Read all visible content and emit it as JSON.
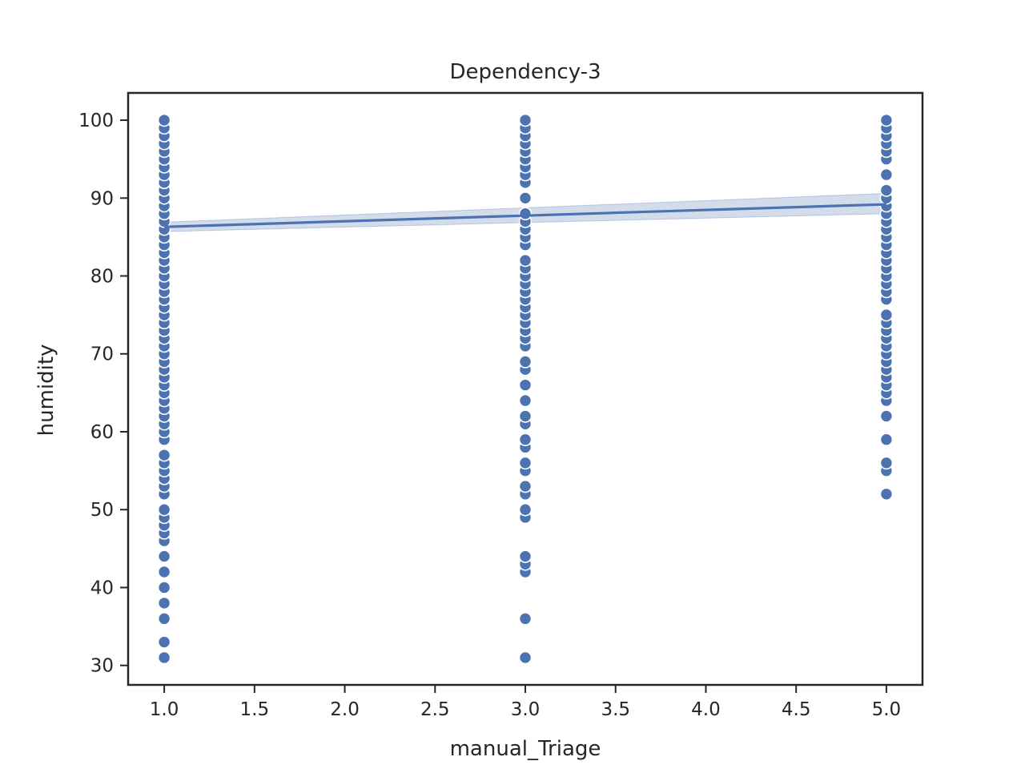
{
  "chart_data": {
    "type": "scatter",
    "title": "Dependency-3",
    "xlabel": "manual_Triage",
    "ylabel": "humidity",
    "xlim": [
      0.8,
      5.2
    ],
    "ylim": [
      27.5,
      103.5
    ],
    "xticks": [
      1.0,
      1.5,
      2.0,
      2.5,
      3.0,
      3.5,
      4.0,
      4.5,
      5.0
    ],
    "xtick_labels": [
      "1.0",
      "1.5",
      "2.0",
      "2.5",
      "3.0",
      "3.5",
      "4.0",
      "4.5",
      "5.0"
    ],
    "yticks": [
      30,
      40,
      50,
      60,
      70,
      80,
      90,
      100
    ],
    "ytick_labels": [
      "30",
      "40",
      "50",
      "60",
      "70",
      "80",
      "90",
      "100"
    ],
    "grid": false,
    "point_color": "#4c72b0",
    "series": [
      {
        "x": 1,
        "y": [
          31,
          33,
          36,
          38,
          40,
          42,
          44,
          46,
          47,
          48,
          49,
          50,
          52,
          53,
          54,
          55,
          56,
          57,
          59,
          60,
          61,
          62,
          63,
          64,
          65,
          66,
          67,
          68,
          69,
          70,
          71,
          72,
          73,
          74,
          75,
          76,
          77,
          78,
          79,
          80,
          81,
          82,
          83,
          84,
          85,
          86,
          87,
          88,
          89,
          90,
          91,
          92,
          93,
          94,
          95,
          96,
          97,
          98,
          99,
          100
        ]
      },
      {
        "x": 3,
        "y": [
          31,
          36,
          42,
          43,
          44,
          49,
          50,
          52,
          53,
          55,
          56,
          58,
          59,
          61,
          62,
          64,
          66,
          68,
          69,
          71,
          72,
          73,
          74,
          75,
          76,
          77,
          78,
          79,
          80,
          81,
          82,
          84,
          85,
          86,
          87,
          88,
          90,
          92,
          93,
          94,
          95,
          96,
          97,
          98,
          99,
          100
        ]
      },
      {
        "x": 5,
        "y": [
          52,
          55,
          56,
          59,
          62,
          64,
          65,
          66,
          67,
          68,
          69,
          70,
          71,
          72,
          73,
          74,
          75,
          77,
          78,
          79,
          80,
          81,
          82,
          83,
          84,
          85,
          86,
          87,
          88,
          89,
          90,
          91,
          93,
          95,
          96,
          97,
          98,
          99,
          100
        ]
      }
    ],
    "regression": {
      "x": [
        1,
        5
      ],
      "y": [
        86.3,
        89.2
      ],
      "ci_lower": [
        85.7,
        88.0
      ],
      "ci_upper": [
        86.9,
        90.6
      ],
      "color": "#4c72b0"
    }
  }
}
